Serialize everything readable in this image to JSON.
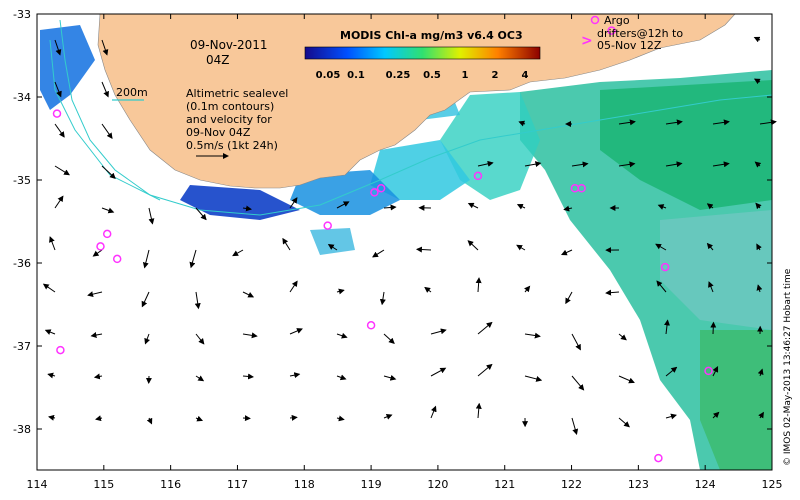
{
  "title": "09-Nov-2011",
  "time": "04Z",
  "colorbar": {
    "title": "MODIS Chl-a mg/m3 v6.4 OC3",
    "ticks": [
      "0.05",
      "0.1",
      "0.25",
      "0.5",
      "1",
      "2",
      "4"
    ]
  },
  "legend_bathy": "200m",
  "note_lines": [
    "Altimetric sealevel",
    "(0.1m contours)",
    "and velocity for",
    "09-Nov 04Z",
    "0.5m/s (1kt 24h)"
  ],
  "argo": {
    "lines": [
      "Argo",
      "drifters@12h to",
      "05-Nov 12Z"
    ],
    "marker_symbol": ">"
  },
  "credit": "© IMOS 02-May-2013 13:46:27 Hobart time",
  "x_ticks": [
    "114",
    "115",
    "116",
    "117",
    "118",
    "119",
    "120",
    "121",
    "122",
    "123",
    "124",
    "125"
  ],
  "y_ticks": [
    "-33",
    "-34",
    "-35",
    "-36",
    "-37",
    "-38"
  ],
  "colors": {
    "land": "#f8c89a",
    "accent_argo": "#ff33ff",
    "bathy": "#33cccc"
  },
  "argo_positions": [
    [
      114.3,
      -34.2
    ],
    [
      114.95,
      -35.8
    ],
    [
      115.05,
      -35.65
    ],
    [
      115.2,
      -35.95
    ],
    [
      114.35,
      -37.05
    ],
    [
      118.35,
      -35.55
    ],
    [
      119.05,
      -35.15
    ],
    [
      119.15,
      -35.1
    ],
    [
      119.0,
      -36.75
    ],
    [
      120.6,
      -34.95
    ],
    [
      122.05,
      -35.1
    ],
    [
      122.15,
      -35.1
    ],
    [
      123.4,
      -36.05
    ],
    [
      124.05,
      -37.3
    ],
    [
      123.3,
      -38.35
    ],
    [
      122.6,
      -33.2
    ]
  ]
}
